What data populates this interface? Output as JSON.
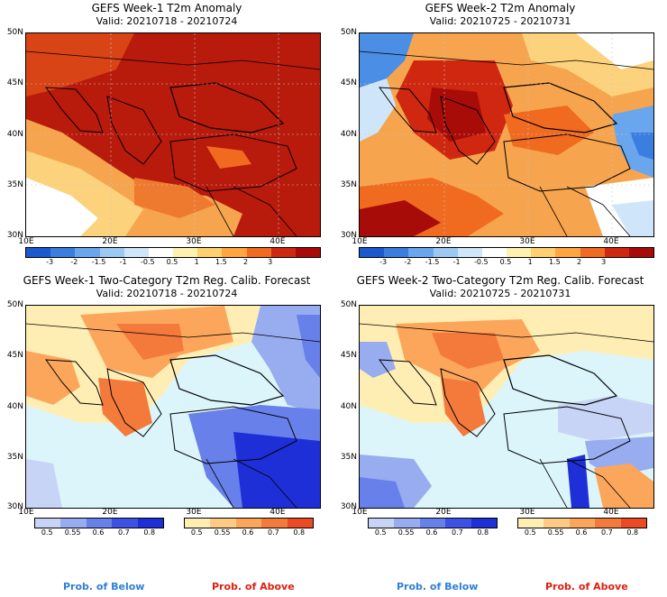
{
  "panels": [
    {
      "title": "GEFS Week-1 T2m Anomaly",
      "valid": "Valid: 20210718 - 20210724"
    },
    {
      "title": "GEFS Week-2 T2m Anomaly",
      "valid": "Valid: 20210725 - 20210731"
    },
    {
      "title": "GEFS Week-1 Two-Category T2m Reg. Calib. Forecast",
      "valid": "Valid: 20210718 - 20210724"
    },
    {
      "title": "GEFS Week-2 Two-Category T2m Reg. Calib. Forecast",
      "valid": "Valid: 20210725 - 20210731"
    }
  ],
  "axes": {
    "lat_labels": [
      "50N",
      "45N",
      "40N",
      "35N",
      "30N"
    ],
    "lon_labels": [
      "10E",
      "20E",
      "30E",
      "40E"
    ]
  },
  "anomaly_colorbar": {
    "labels": [
      "-3",
      "-2",
      "-1.5",
      "-1",
      "-0.5",
      "0.5",
      "1",
      "1.5",
      "2",
      "3"
    ],
    "colors": [
      "#1a5ad0",
      "#3a7ee0",
      "#6aa6ee",
      "#9cc8f4",
      "#cfe6fa",
      "#ffffff",
      "#fff2b0",
      "#ffd070",
      "#ffa640",
      "#f06a20",
      "#d02810",
      "#a80c08"
    ]
  },
  "prob_below": {
    "label": "Prob. of Below",
    "ticks": [
      "0.5",
      "0.55",
      "0.6",
      "0.7",
      "0.8"
    ],
    "colors": [
      "#c8d4f6",
      "#98acf0",
      "#6880ea",
      "#3d52e4",
      "#1f2fd8"
    ]
  },
  "prob_above": {
    "label": "Prob. of Above",
    "ticks": [
      "0.5",
      "0.55",
      "0.6",
      "0.7",
      "0.8"
    ],
    "colors": [
      "#ffeeb4",
      "#ffcb84",
      "#fca65c",
      "#f47a3c",
      "#ec4a22"
    ]
  },
  "colors": {
    "sea_prob": "#dbf5fa",
    "neutral_land": "#ffffff",
    "below_text": "#2f7fd8",
    "above_text": "#e01e10"
  }
}
